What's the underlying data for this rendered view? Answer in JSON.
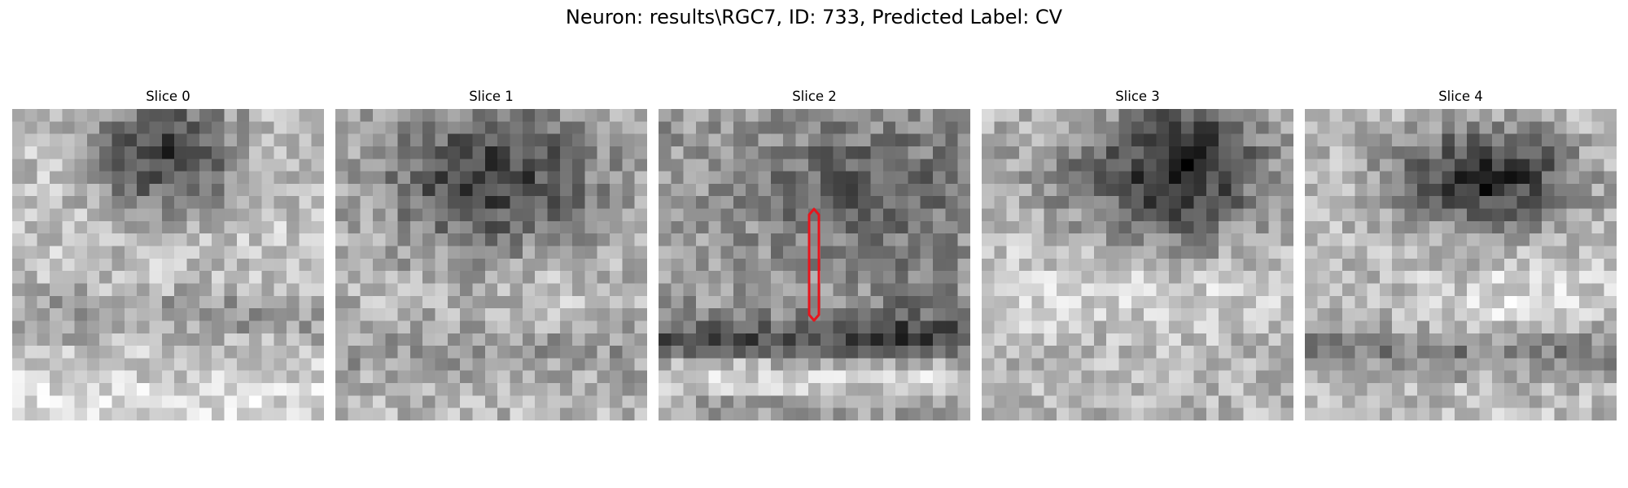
{
  "figure": {
    "title": "Neuron: results\\RGC7, ID: 733, Predicted Label: CV"
  },
  "panels": [
    {
      "title": "Slice 0"
    },
    {
      "title": "Slice 1"
    },
    {
      "title": "Slice 2"
    },
    {
      "title": "Slice 3"
    },
    {
      "title": "Slice 4"
    }
  ],
  "image": {
    "grid": 25,
    "colormap": "gray",
    "marker_slice": 2,
    "marker_color": "#e8141c"
  }
}
